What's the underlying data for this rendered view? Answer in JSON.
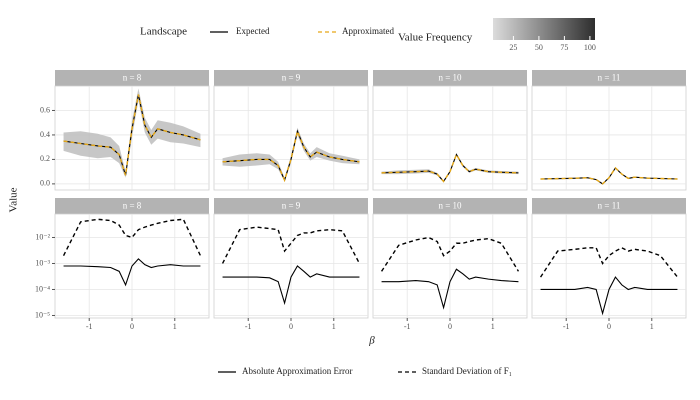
{
  "legend": {
    "title": "Landscape",
    "colorbar": {
      "title": "Value Frequency",
      "lim": [
        5,
        105
      ],
      "ticks": [
        25,
        50,
        75,
        100
      ],
      "colors": [
        "#dcdcdc",
        "#2e2e2e"
      ]
    }
  },
  "xlabel": "β",
  "ylabel": "Value",
  "chart_data": [
    {
      "type": "line",
      "title": "n = 8",
      "x": [
        -1.6,
        -1.2,
        -0.8,
        -0.5,
        -0.3,
        -0.15,
        0,
        0.15,
        0.3,
        0.45,
        0.6,
        0.9,
        1.2,
        1.6
      ],
      "xlim": [
        -1.8,
        1.8
      ],
      "xticks": [
        -1,
        0,
        1
      ],
      "ylim": [
        -0.05,
        0.8
      ],
      "yticks": [
        {
          "value": 0,
          "label": "0.0"
        },
        0.2,
        0.4,
        0.6
      ],
      "grid": true,
      "band": {
        "color": "#bdbdbd",
        "lower": [
          0.27,
          0.23,
          0.21,
          0.22,
          0.17,
          0.05,
          0.38,
          0.68,
          0.42,
          0.32,
          0.37,
          0.34,
          0.33,
          0.3
        ],
        "upper": [
          0.42,
          0.43,
          0.41,
          0.38,
          0.31,
          0.1,
          0.52,
          0.78,
          0.54,
          0.44,
          0.52,
          0.5,
          0.47,
          0.41
        ]
      },
      "series": [
        {
          "name": "Expected",
          "color": "#000000",
          "dash": false,
          "values": [
            0.35,
            0.33,
            0.31,
            0.3,
            0.24,
            0.07,
            0.45,
            0.73,
            0.48,
            0.38,
            0.45,
            0.42,
            0.4,
            0.36
          ]
        },
        {
          "name": "Approximated",
          "color": "#e6a817",
          "dash": true,
          "values": [
            0.35,
            0.33,
            0.31,
            0.3,
            0.24,
            0.07,
            0.45,
            0.73,
            0.48,
            0.38,
            0.45,
            0.42,
            0.4,
            0.36
          ]
        }
      ]
    },
    {
      "type": "line",
      "title": "n = 9",
      "x": [
        -1.6,
        -1.2,
        -0.8,
        -0.5,
        -0.3,
        -0.15,
        0,
        0.15,
        0.3,
        0.45,
        0.6,
        0.9,
        1.2,
        1.6
      ],
      "xlim": [
        -1.8,
        1.8
      ],
      "xticks": [
        -1,
        0,
        1
      ],
      "ylim": [
        -0.05,
        0.8
      ],
      "yticks": [
        {
          "value": 0,
          "label": "0.0"
        },
        0.2,
        0.4,
        0.6
      ],
      "grid": true,
      "band": {
        "color": "#bdbdbd",
        "lower": [
          0.15,
          0.14,
          0.15,
          0.16,
          0.12,
          0.02,
          0.17,
          0.4,
          0.27,
          0.19,
          0.22,
          0.19,
          0.17,
          0.16
        ],
        "upper": [
          0.21,
          0.24,
          0.25,
          0.24,
          0.18,
          0.05,
          0.23,
          0.46,
          0.33,
          0.25,
          0.3,
          0.25,
          0.23,
          0.2
        ]
      },
      "series": [
        {
          "name": "Expected",
          "color": "#000000",
          "dash": false,
          "values": [
            0.18,
            0.19,
            0.2,
            0.2,
            0.15,
            0.03,
            0.2,
            0.43,
            0.3,
            0.22,
            0.26,
            0.22,
            0.2,
            0.18
          ]
        },
        {
          "name": "Approximated",
          "color": "#e6a817",
          "dash": true,
          "values": [
            0.18,
            0.19,
            0.2,
            0.2,
            0.15,
            0.03,
            0.2,
            0.43,
            0.3,
            0.22,
            0.26,
            0.22,
            0.2,
            0.18
          ]
        }
      ]
    },
    {
      "type": "line",
      "title": "n = 10",
      "x": [
        -1.6,
        -1.2,
        -0.8,
        -0.5,
        -0.3,
        -0.15,
        0,
        0.15,
        0.3,
        0.45,
        0.6,
        0.9,
        1.2,
        1.6
      ],
      "xlim": [
        -1.8,
        1.8
      ],
      "xticks": [
        -1,
        0,
        1
      ],
      "ylim": [
        -0.05,
        0.8
      ],
      "yticks": [
        {
          "value": 0,
          "label": "0.0"
        },
        0.2,
        0.4,
        0.6
      ],
      "grid": true,
      "band": {
        "color": "#bdbdbd",
        "lower": [
          0.08,
          0.08,
          0.085,
          0.09,
          0.07,
          0.015,
          0.09,
          0.23,
          0.14,
          0.09,
          0.11,
          0.09,
          0.085,
          0.08
        ],
        "upper": [
          0.1,
          0.11,
          0.115,
          0.12,
          0.09,
          0.03,
          0.11,
          0.25,
          0.16,
          0.11,
          0.13,
          0.11,
          0.105,
          0.1
        ]
      },
      "series": [
        {
          "name": "Expected",
          "color": "#000000",
          "dash": false,
          "values": [
            0.09,
            0.095,
            0.1,
            0.105,
            0.08,
            0.02,
            0.1,
            0.24,
            0.15,
            0.1,
            0.12,
            0.1,
            0.095,
            0.09
          ]
        },
        {
          "name": "Approximated",
          "color": "#e6a817",
          "dash": true,
          "values": [
            0.09,
            0.095,
            0.1,
            0.105,
            0.08,
            0.02,
            0.1,
            0.24,
            0.15,
            0.1,
            0.12,
            0.1,
            0.095,
            0.09
          ]
        }
      ]
    },
    {
      "type": "line",
      "title": "n = 11",
      "x": [
        -1.6,
        -1.2,
        -0.8,
        -0.5,
        -0.3,
        -0.15,
        0,
        0.15,
        0.3,
        0.45,
        0.6,
        0.9,
        1.2,
        1.6
      ],
      "xlim": [
        -1.8,
        1.8
      ],
      "xticks": [
        -1,
        0,
        1
      ],
      "ylim": [
        -0.05,
        0.8
      ],
      "yticks": [
        {
          "value": 0,
          "label": "0.0"
        },
        0.2,
        0.4,
        0.6
      ],
      "grid": true,
      "band": {
        "color": "#bdbdbd",
        "lower": [
          0.035,
          0.037,
          0.04,
          0.044,
          0.03,
          -0.005,
          0.045,
          0.125,
          0.075,
          0.04,
          0.05,
          0.042,
          0.039,
          0.035
        ],
        "upper": [
          0.045,
          0.049,
          0.052,
          0.056,
          0.04,
          0.005,
          0.055,
          0.135,
          0.085,
          0.05,
          0.06,
          0.052,
          0.049,
          0.045
        ]
      },
      "series": [
        {
          "name": "Expected",
          "color": "#000000",
          "dash": false,
          "values": [
            0.04,
            0.043,
            0.046,
            0.05,
            0.035,
            0.0,
            0.05,
            0.13,
            0.08,
            0.045,
            0.055,
            0.047,
            0.044,
            0.04
          ]
        },
        {
          "name": "Approximated",
          "color": "#e6a817",
          "dash": true,
          "values": [
            0.04,
            0.043,
            0.046,
            0.05,
            0.035,
            0.0,
            0.05,
            0.13,
            0.08,
            0.045,
            0.055,
            0.047,
            0.044,
            0.04
          ]
        }
      ]
    },
    {
      "type": "line",
      "title": "n = 8",
      "x": [
        -1.6,
        -1.2,
        -0.8,
        -0.5,
        -0.3,
        -0.15,
        0,
        0.15,
        0.3,
        0.45,
        0.6,
        0.9,
        1.2,
        1.6
      ],
      "xlim": [
        -1.8,
        1.8
      ],
      "xticks": [
        -1,
        0,
        1
      ],
      "log_y": true,
      "ylim": [
        8e-06,
        0.08
      ],
      "yticks": [
        {
          "value": 1e-05,
          "label": "10⁻⁵"
        },
        {
          "value": 0.0001,
          "label": "10⁻⁴"
        },
        {
          "value": 0.001,
          "label": "10⁻³"
        },
        {
          "value": 0.01,
          "label": "10⁻²"
        }
      ],
      "grid": true,
      "series": [
        {
          "name": "Absolute Approximation Error",
          "color": "#000000",
          "dash": false,
          "values": [
            0.0008,
            0.0008,
            0.00075,
            0.0007,
            0.0005,
            0.00015,
            0.0008,
            0.0015,
            0.0009,
            0.0007,
            0.0008,
            0.0009,
            0.0008,
            0.0008
          ]
        },
        {
          "name": "Standard Deviation of F₁",
          "color": "#000000",
          "dash": true,
          "values": [
            0.002,
            0.04,
            0.05,
            0.045,
            0.03,
            0.012,
            0.01,
            0.02,
            0.025,
            0.03,
            0.035,
            0.045,
            0.05,
            0.002
          ]
        }
      ]
    },
    {
      "type": "line",
      "title": "n = 9",
      "x": [
        -1.6,
        -1.2,
        -0.8,
        -0.5,
        -0.3,
        -0.15,
        0,
        0.15,
        0.3,
        0.45,
        0.6,
        0.9,
        1.2,
        1.6
      ],
      "xlim": [
        -1.8,
        1.8
      ],
      "xticks": [
        -1,
        0,
        1
      ],
      "log_y": true,
      "ylim": [
        8e-06,
        0.08
      ],
      "yticks": [
        {
          "value": 1e-05,
          "label": "10⁻⁵"
        },
        {
          "value": 0.0001,
          "label": "10⁻⁴"
        },
        {
          "value": 0.001,
          "label": "10⁻³"
        },
        {
          "value": 0.01,
          "label": "10⁻²"
        }
      ],
      "grid": true,
      "series": [
        {
          "name": "Absolute Approximation Error",
          "color": "#000000",
          "dash": false,
          "values": [
            0.0003,
            0.0003,
            0.0003,
            0.00028,
            0.0002,
            3e-05,
            0.0003,
            0.0008,
            0.0005,
            0.0003,
            0.0004,
            0.0003,
            0.0003,
            0.0003
          ]
        },
        {
          "name": "Standard Deviation of F₁",
          "color": "#000000",
          "dash": true,
          "values": [
            0.001,
            0.02,
            0.025,
            0.022,
            0.02,
            0.003,
            0.006,
            0.012,
            0.015,
            0.015,
            0.018,
            0.02,
            0.018,
            0.001
          ]
        }
      ]
    },
    {
      "type": "line",
      "title": "n = 10",
      "x": [
        -1.6,
        -1.2,
        -0.8,
        -0.5,
        -0.3,
        -0.15,
        0,
        0.15,
        0.3,
        0.45,
        0.6,
        0.9,
        1.2,
        1.6
      ],
      "xlim": [
        -1.8,
        1.8
      ],
      "xticks": [
        -1,
        0,
        1
      ],
      "log_y": true,
      "ylim": [
        8e-06,
        0.08
      ],
      "yticks": [
        {
          "value": 1e-05,
          "label": "10⁻⁵"
        },
        {
          "value": 0.0001,
          "label": "10⁻⁴"
        },
        {
          "value": 0.001,
          "label": "10⁻³"
        },
        {
          "value": 0.01,
          "label": "10⁻²"
        }
      ],
      "grid": true,
      "series": [
        {
          "name": "Absolute Approximation Error",
          "color": "#000000",
          "dash": false,
          "values": [
            0.0002,
            0.0002,
            0.00022,
            0.0002,
            0.00015,
            2e-05,
            0.0002,
            0.0006,
            0.0004,
            0.00025,
            0.0003,
            0.00025,
            0.00022,
            0.0002
          ]
        },
        {
          "name": "Standard Deviation of F₁",
          "color": "#000000",
          "dash": true,
          "values": [
            0.0005,
            0.005,
            0.008,
            0.01,
            0.007,
            0.002,
            0.003,
            0.006,
            0.006,
            0.007,
            0.008,
            0.009,
            0.006,
            0.0005
          ]
        }
      ]
    },
    {
      "type": "line",
      "title": "n = 11",
      "x": [
        -1.6,
        -1.2,
        -0.8,
        -0.5,
        -0.3,
        -0.15,
        0,
        0.15,
        0.3,
        0.45,
        0.6,
        0.9,
        1.2,
        1.6
      ],
      "xlim": [
        -1.8,
        1.8
      ],
      "xticks": [
        -1,
        0,
        1
      ],
      "log_y": true,
      "ylim": [
        8e-06,
        0.08
      ],
      "yticks": [
        {
          "value": 1e-05,
          "label": "10⁻⁵"
        },
        {
          "value": 0.0001,
          "label": "10⁻⁴"
        },
        {
          "value": 0.001,
          "label": "10⁻³"
        },
        {
          "value": 0.01,
          "label": "10⁻²"
        }
      ],
      "grid": true,
      "series": [
        {
          "name": "Absolute Approximation Error",
          "color": "#000000",
          "dash": false,
          "values": [
            0.0001,
            0.0001,
            0.0001,
            0.00012,
            0.0001,
            1.2e-05,
            0.0001,
            0.0003,
            0.00015,
            0.0001,
            0.00012,
            0.0001,
            0.0001,
            0.0001
          ]
        },
        {
          "name": "Standard Deviation of F₁",
          "color": "#000000",
          "dash": true,
          "values": [
            0.0003,
            0.003,
            0.0035,
            0.004,
            0.004,
            0.001,
            0.002,
            0.003,
            0.004,
            0.003,
            0.0035,
            0.003,
            0.002,
            0.0003
          ]
        }
      ]
    }
  ]
}
